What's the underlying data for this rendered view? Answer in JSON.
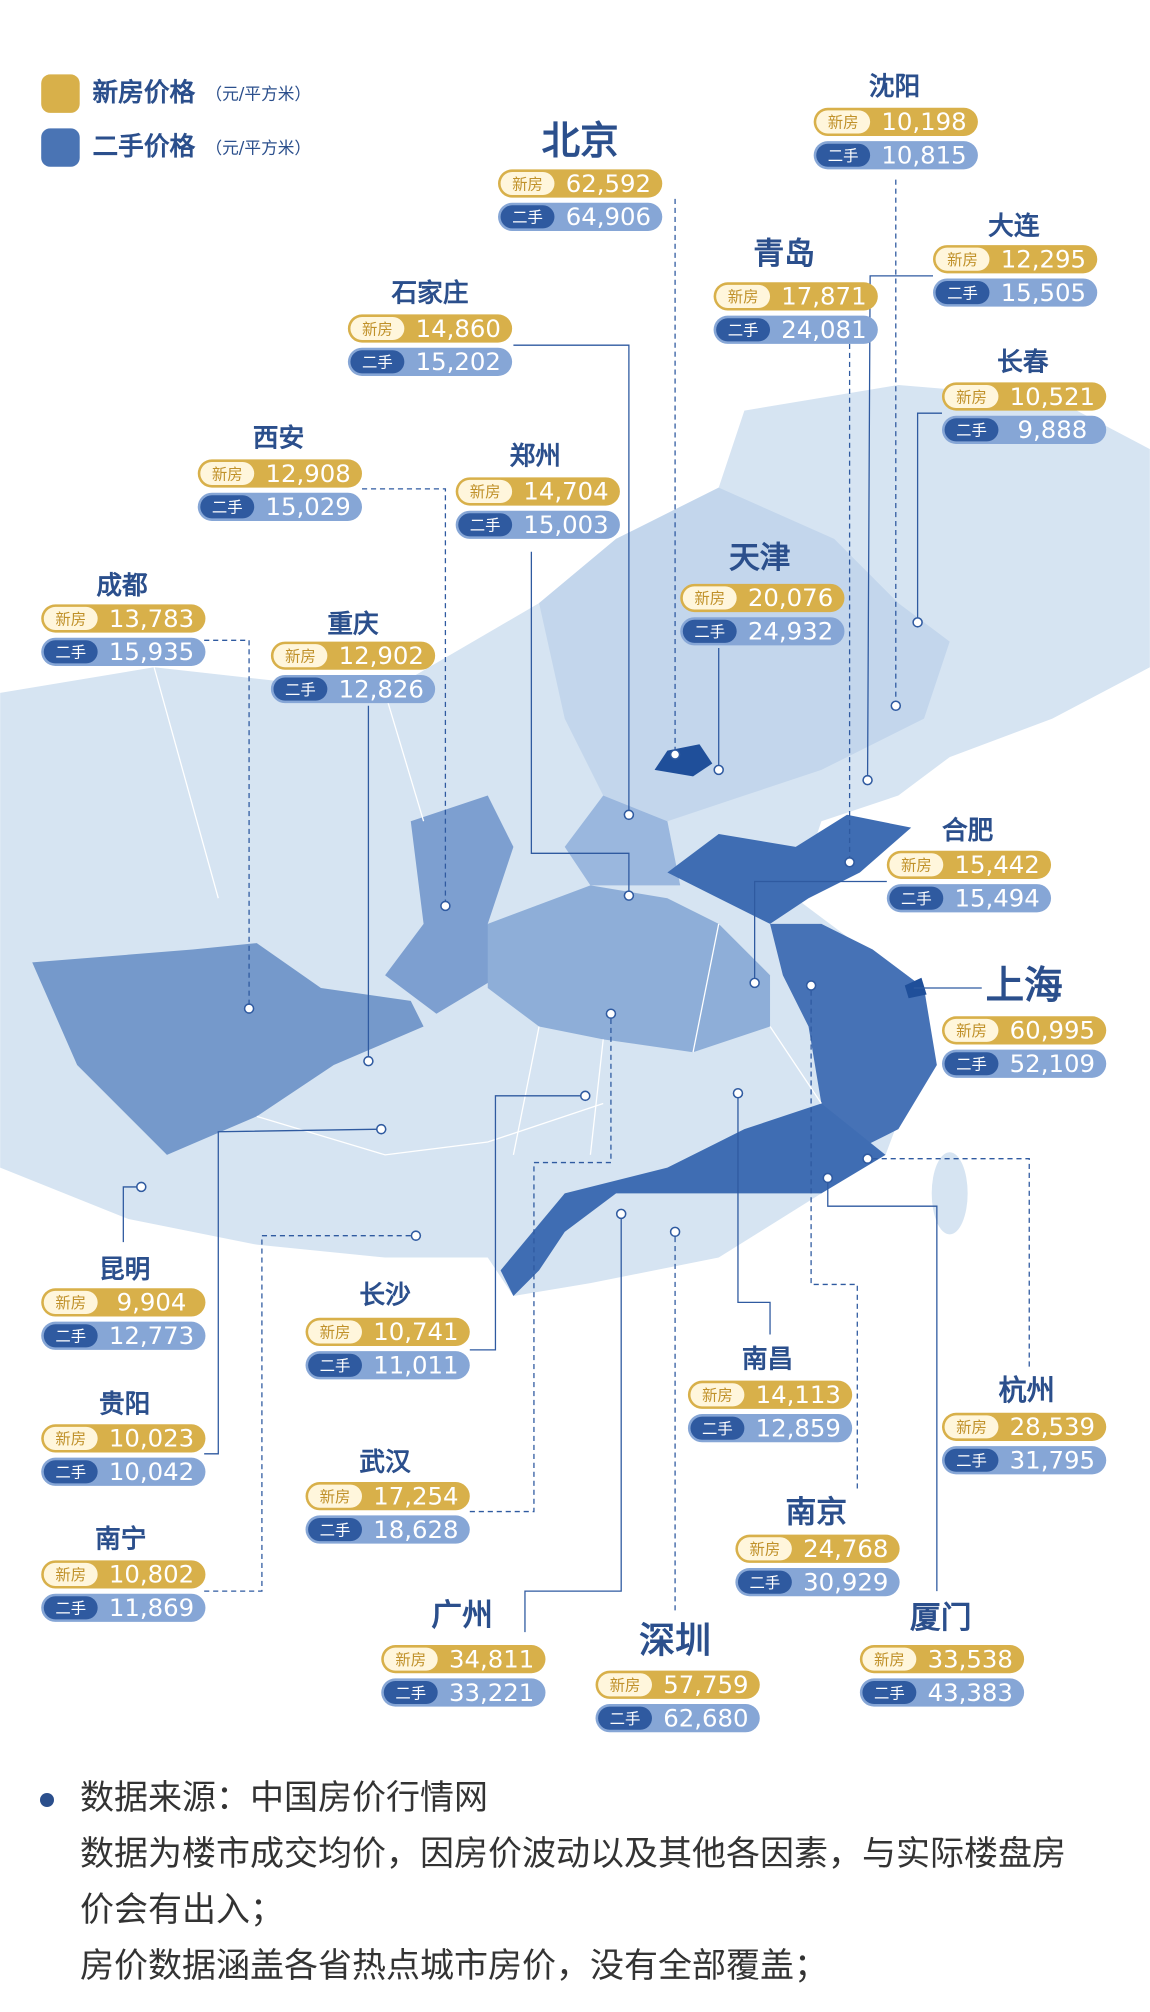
{
  "legend": [
    {
      "label": "新房价格",
      "unit": "（元/平方米）"
    },
    {
      "label": "二手价格",
      "unit": "（元/平方米）"
    }
  ],
  "badges": {
    "new": "新房",
    "used": "二手"
  },
  "cities": [
    {
      "name": "北京",
      "new": "62,592",
      "used": "64,906"
    },
    {
      "name": "沈阳",
      "new": "10,198",
      "used": "10,815"
    },
    {
      "name": "大连",
      "new": "12,295",
      "used": "15,505"
    },
    {
      "name": "青岛",
      "new": "17,871",
      "used": "24,081"
    },
    {
      "name": "长春",
      "new": "10,521",
      "used": "9,888"
    },
    {
      "name": "石家庄",
      "new": "14,860",
      "used": "15,202"
    },
    {
      "name": "西安",
      "new": "12,908",
      "used": "15,029"
    },
    {
      "name": "郑州",
      "new": "14,704",
      "used": "15,003"
    },
    {
      "name": "天津",
      "new": "20,076",
      "used": "24,932"
    },
    {
      "name": "成都",
      "new": "13,783",
      "used": "15,935"
    },
    {
      "name": "重庆",
      "new": "12,902",
      "used": "12,826"
    },
    {
      "name": "合肥",
      "new": "15,442",
      "used": "15,494"
    },
    {
      "name": "上海",
      "new": "60,995",
      "used": "52,109"
    },
    {
      "name": "昆明",
      "new": "9,904",
      "used": "12,773"
    },
    {
      "name": "贵阳",
      "new": "10,023",
      "used": "10,042"
    },
    {
      "name": "南宁",
      "new": "10,802",
      "used": "11,869"
    },
    {
      "name": "长沙",
      "new": "10,741",
      "used": "11,011"
    },
    {
      "name": "武汉",
      "new": "17,254",
      "used": "18,628"
    },
    {
      "name": "广州",
      "new": "34,811",
      "used": "33,221"
    },
    {
      "name": "深圳",
      "new": "57,759",
      "used": "62,680"
    },
    {
      "name": "南昌",
      "new": "14,113",
      "used": "12,859"
    },
    {
      "name": "南京",
      "new": "24,768",
      "used": "30,929"
    },
    {
      "name": "厦门",
      "new": "33,538",
      "used": "43,383"
    },
    {
      "name": "杭州",
      "new": "28,539",
      "used": "31,795"
    }
  ],
  "notes": {
    "source": "数据来源：中国房价行情网",
    "lines": [
      "数据为楼市成交均价，因房价波动以及其他各因素，与实际楼盘房价会有出入；",
      "房价数据涵盖各省热点城市房价，没有全部覆盖；"
    ]
  }
}
